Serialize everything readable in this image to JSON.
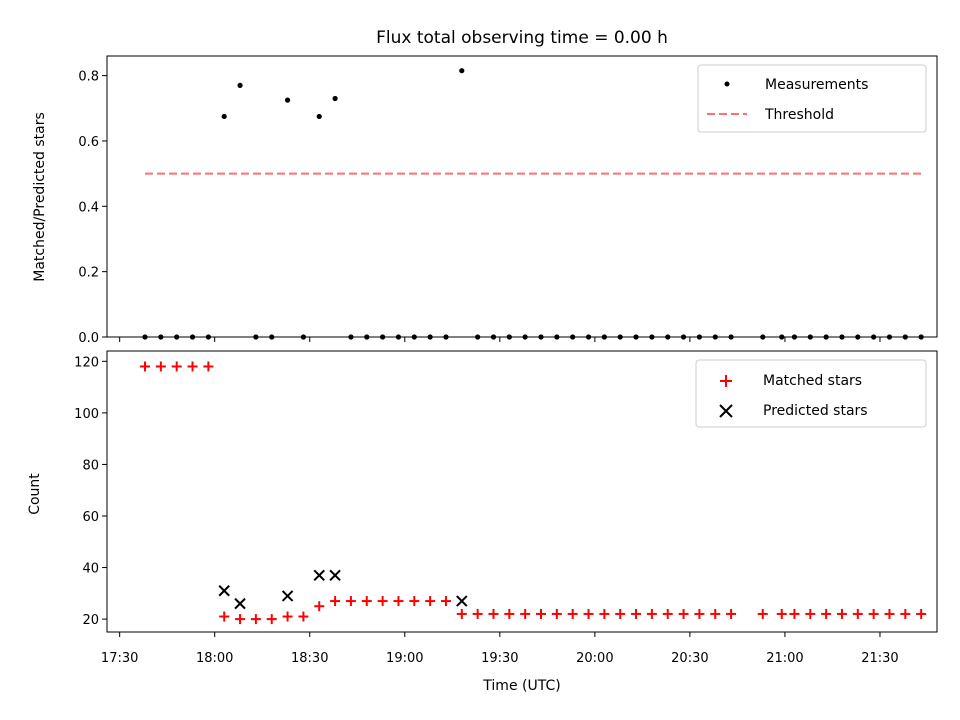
{
  "figure": {
    "title": "Flux total observing time = 0.00 h"
  },
  "chart_data": [
    {
      "type": "scatter",
      "title": "Flux total observing time = 0.00 h",
      "xlabel": "",
      "ylabel": "Matched/Predicted stars",
      "xlim": [
        "17:26",
        "21:48"
      ],
      "ylim": [
        0,
        0.86
      ],
      "yticks": [
        0.0,
        0.2,
        0.4,
        0.6,
        0.8
      ],
      "ytick_labels": [
        "0.0",
        "0.2",
        "0.4",
        "0.6",
        "0.8"
      ],
      "legend_position": "top-right",
      "grid": false,
      "series": [
        {
          "name": "Measurements",
          "marker": "dot",
          "color": "#000000",
          "points": [
            [
              "17:38",
              0.0
            ],
            [
              "17:43",
              0.0
            ],
            [
              "17:48",
              0.0
            ],
            [
              "17:53",
              0.0
            ],
            [
              "17:58",
              0.0
            ],
            [
              "18:03",
              0.675
            ],
            [
              "18:08",
              0.77
            ],
            [
              "18:13",
              0.0
            ],
            [
              "18:18",
              0.0
            ],
            [
              "18:23",
              0.725
            ],
            [
              "18:28",
              0.0
            ],
            [
              "18:33",
              0.675
            ],
            [
              "18:38",
              0.73
            ],
            [
              "18:43",
              0.0
            ],
            [
              "18:48",
              0.0
            ],
            [
              "18:53",
              0.0
            ],
            [
              "18:58",
              0.0
            ],
            [
              "19:03",
              0.0
            ],
            [
              "19:08",
              0.0
            ],
            [
              "19:13",
              0.0
            ],
            [
              "19:18",
              0.815
            ],
            [
              "19:23",
              0.0
            ],
            [
              "19:28",
              0.0
            ],
            [
              "19:33",
              0.0
            ],
            [
              "19:38",
              0.0
            ],
            [
              "19:43",
              0.0
            ],
            [
              "19:48",
              0.0
            ],
            [
              "19:53",
              0.0
            ],
            [
              "19:58",
              0.0
            ],
            [
              "20:03",
              0.0
            ],
            [
              "20:08",
              0.0
            ],
            [
              "20:13",
              0.0
            ],
            [
              "20:18",
              0.0
            ],
            [
              "20:23",
              0.0
            ],
            [
              "20:28",
              0.0
            ],
            [
              "20:33",
              0.0
            ],
            [
              "20:38",
              0.0
            ],
            [
              "20:43",
              0.0
            ],
            [
              "20:53",
              0.0
            ],
            [
              "20:59",
              0.0
            ],
            [
              "21:03",
              0.0
            ],
            [
              "21:08",
              0.0
            ],
            [
              "21:13",
              0.0
            ],
            [
              "21:18",
              0.0
            ],
            [
              "21:23",
              0.0
            ],
            [
              "21:28",
              0.0
            ],
            [
              "21:33",
              0.0
            ],
            [
              "21:38",
              0.0
            ],
            [
              "21:43",
              0.0
            ]
          ]
        },
        {
          "name": "Threshold",
          "style": "dashed-line",
          "color": "#ff7070",
          "points": [
            [
              "17:38",
              0.5
            ],
            [
              "21:43",
              0.5
            ]
          ]
        }
      ]
    },
    {
      "type": "scatter",
      "xlabel": "Time (UTC)",
      "ylabel": "Count",
      "xlim": [
        "17:26",
        "21:48"
      ],
      "ylim": [
        15,
        124
      ],
      "yticks": [
        20,
        40,
        60,
        80,
        100,
        120
      ],
      "ytick_labels": [
        "20",
        "40",
        "60",
        "80",
        "100",
        "120"
      ],
      "xticks": [
        "17:30",
        "18:00",
        "18:30",
        "19:00",
        "19:30",
        "20:00",
        "20:30",
        "21:00",
        "21:30"
      ],
      "xtick_labels": [
        "17:30",
        "18:00",
        "18:30",
        "19:00",
        "19:30",
        "20:00",
        "20:30",
        "21:00",
        "21:30"
      ],
      "legend_position": "top-right",
      "grid": false,
      "series": [
        {
          "name": "Matched stars",
          "marker": "plus",
          "color": "#ff0000",
          "points": [
            [
              "17:38",
              118
            ],
            [
              "17:43",
              118
            ],
            [
              "17:48",
              118
            ],
            [
              "17:53",
              118
            ],
            [
              "17:58",
              118
            ],
            [
              "18:03",
              21
            ],
            [
              "18:08",
              20
            ],
            [
              "18:13",
              20
            ],
            [
              "18:18",
              20
            ],
            [
              "18:23",
              21
            ],
            [
              "18:28",
              21
            ],
            [
              "18:33",
              25
            ],
            [
              "18:38",
              27
            ],
            [
              "18:43",
              27
            ],
            [
              "18:48",
              27
            ],
            [
              "18:53",
              27
            ],
            [
              "18:58",
              27
            ],
            [
              "19:03",
              27
            ],
            [
              "19:08",
              27
            ],
            [
              "19:13",
              27
            ],
            [
              "19:18",
              22
            ],
            [
              "19:23",
              22
            ],
            [
              "19:28",
              22
            ],
            [
              "19:33",
              22
            ],
            [
              "19:38",
              22
            ],
            [
              "19:43",
              22
            ],
            [
              "19:48",
              22
            ],
            [
              "19:53",
              22
            ],
            [
              "19:58",
              22
            ],
            [
              "20:03",
              22
            ],
            [
              "20:08",
              22
            ],
            [
              "20:13",
              22
            ],
            [
              "20:18",
              22
            ],
            [
              "20:23",
              22
            ],
            [
              "20:28",
              22
            ],
            [
              "20:33",
              22
            ],
            [
              "20:38",
              22
            ],
            [
              "20:43",
              22
            ],
            [
              "20:53",
              22
            ],
            [
              "20:59",
              22
            ],
            [
              "21:03",
              22
            ],
            [
              "21:08",
              22
            ],
            [
              "21:13",
              22
            ],
            [
              "21:18",
              22
            ],
            [
              "21:23",
              22
            ],
            [
              "21:28",
              22
            ],
            [
              "21:33",
              22
            ],
            [
              "21:38",
              22
            ],
            [
              "21:43",
              22
            ]
          ]
        },
        {
          "name": "Predicted stars",
          "marker": "x",
          "color": "#000000",
          "points": [
            [
              "18:03",
              31
            ],
            [
              "18:08",
              26
            ],
            [
              "18:23",
              29
            ],
            [
              "18:33",
              37
            ],
            [
              "18:38",
              37
            ],
            [
              "19:18",
              27
            ]
          ]
        }
      ]
    }
  ]
}
